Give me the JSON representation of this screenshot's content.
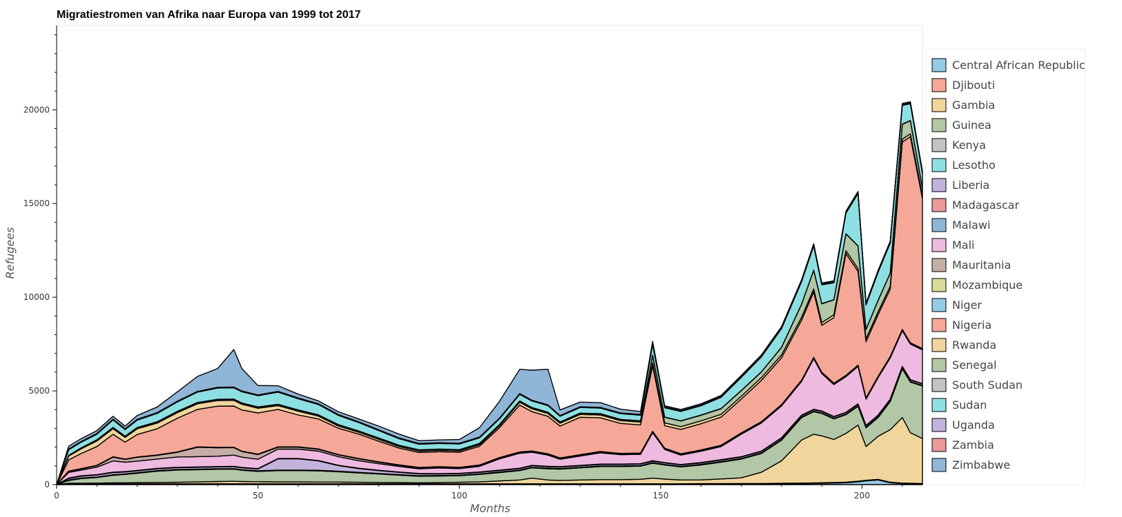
{
  "chart_data": {
    "type": "area",
    "stacked": true,
    "title": "Migratiestromen van Afrika naar Europa van 1999 tot 2017",
    "xlabel": "Months",
    "ylabel": "Refugees",
    "xlim": [
      0,
      215
    ],
    "ylim": [
      0,
      24500
    ],
    "x_ticks": [
      0,
      50,
      100,
      150,
      200
    ],
    "y_ticks": [
      0,
      5000,
      10000,
      15000,
      20000
    ],
    "x_tick_labels": [
      "0",
      "50",
      "100",
      "150",
      "200"
    ],
    "y_tick_labels": [
      "0",
      "5000",
      "10000",
      "15000",
      "20000"
    ],
    "grid": false,
    "legend_position": "right",
    "series_order": "bottom-to-top, in legend order",
    "keyframes_x": [
      0,
      3,
      6,
      10,
      14,
      17,
      20,
      25,
      30,
      35,
      40,
      44,
      46,
      50,
      55,
      60,
      65,
      70,
      75,
      80,
      85,
      90,
      95,
      100,
      105,
      110,
      115,
      118,
      122,
      125,
      130,
      135,
      140,
      145,
      148,
      151,
      155,
      160,
      165,
      170,
      175,
      180,
      185,
      188,
      190,
      193,
      196,
      199,
      201,
      204,
      207,
      210,
      212,
      215
    ],
    "series": [
      {
        "name": "Central African Republic",
        "color": "#95cbe6",
        "values": [
          0,
          20,
          20,
          20,
          25,
          25,
          25,
          25,
          25,
          25,
          25,
          25,
          25,
          25,
          25,
          25,
          25,
          25,
          25,
          25,
          25,
          25,
          25,
          25,
          25,
          25,
          25,
          25,
          25,
          25,
          25,
          25,
          25,
          25,
          25,
          25,
          25,
          30,
          30,
          30,
          30,
          40,
          50,
          60,
          70,
          80,
          100,
          150,
          200,
          250,
          100,
          50,
          40,
          30
        ]
      },
      {
        "name": "Djibouti",
        "color": "#f5a898",
        "values": [
          0,
          20,
          20,
          20,
          20,
          20,
          20,
          20,
          20,
          20,
          20,
          20,
          20,
          20,
          20,
          20,
          20,
          20,
          20,
          20,
          20,
          20,
          20,
          20,
          20,
          20,
          20,
          20,
          20,
          20,
          20,
          20,
          20,
          20,
          20,
          20,
          20,
          20,
          20,
          30,
          30,
          30,
          30,
          30,
          30,
          30,
          30,
          30,
          30,
          30,
          30,
          30,
          30,
          30
        ]
      },
      {
        "name": "Gambia",
        "color": "#f0d69c",
        "values": [
          0,
          30,
          30,
          40,
          50,
          50,
          60,
          70,
          80,
          100,
          120,
          130,
          120,
          110,
          100,
          100,
          90,
          90,
          80,
          70,
          60,
          50,
          60,
          80,
          100,
          150,
          200,
          300,
          200,
          180,
          200,
          220,
          220,
          240,
          300,
          250,
          200,
          200,
          250,
          300,
          600,
          1200,
          2300,
          2600,
          2500,
          2300,
          2600,
          3000,
          1800,
          2300,
          2800,
          3500,
          2700,
          2400
        ]
      },
      {
        "name": "Guinea",
        "color": "#b2c7a5",
        "values": [
          0,
          150,
          250,
          300,
          400,
          450,
          500,
          600,
          650,
          650,
          650,
          650,
          600,
          550,
          600,
          600,
          600,
          550,
          500,
          450,
          400,
          350,
          350,
          350,
          400,
          450,
          500,
          550,
          600,
          600,
          650,
          700,
          700,
          700,
          800,
          750,
          700,
          800,
          900,
          1000,
          1000,
          1100,
          1200,
          1200,
          1200,
          1100,
          1000,
          1000,
          1000,
          1000,
          1500,
          2600,
          2700,
          2800
        ]
      },
      {
        "name": "Kenya",
        "color": "#c3c3c3",
        "values": [
          0,
          20,
          20,
          20,
          20,
          20,
          20,
          20,
          20,
          20,
          20,
          20,
          20,
          20,
          20,
          20,
          20,
          20,
          20,
          20,
          20,
          20,
          20,
          20,
          20,
          20,
          20,
          20,
          20,
          20,
          20,
          20,
          20,
          20,
          20,
          20,
          20,
          20,
          20,
          20,
          20,
          20,
          20,
          20,
          20,
          20,
          20,
          20,
          20,
          20,
          20,
          20,
          20,
          20
        ]
      },
      {
        "name": "Lesotho",
        "color": "#8edfe2",
        "values": [
          0,
          10,
          10,
          10,
          10,
          10,
          10,
          10,
          10,
          10,
          10,
          10,
          10,
          10,
          10,
          10,
          10,
          10,
          10,
          10,
          10,
          10,
          10,
          10,
          10,
          10,
          10,
          10,
          10,
          10,
          10,
          10,
          10,
          10,
          10,
          10,
          10,
          10,
          10,
          10,
          10,
          10,
          10,
          10,
          10,
          10,
          10,
          10,
          10,
          10,
          10,
          10,
          10,
          10
        ]
      },
      {
        "name": "Liberia",
        "color": "#c3b3dc",
        "values": [
          0,
          80,
          100,
          100,
          120,
          100,
          100,
          100,
          100,
          100,
          100,
          100,
          100,
          100,
          600,
          600,
          500,
          300,
          200,
          150,
          120,
          100,
          80,
          80,
          80,
          80,
          80,
          80,
          80,
          80,
          80,
          80,
          80,
          80,
          80,
          80,
          80,
          80,
          80,
          80,
          80,
          80,
          80,
          80,
          80,
          80,
          80,
          80,
          80,
          80,
          80,
          80,
          80,
          80
        ]
      },
      {
        "name": "Madagascar",
        "color": "#ea9a9a",
        "values": [
          0,
          10,
          10,
          10,
          10,
          10,
          10,
          10,
          10,
          10,
          10,
          10,
          10,
          10,
          10,
          10,
          10,
          10,
          10,
          10,
          10,
          10,
          10,
          10,
          10,
          10,
          10,
          10,
          10,
          10,
          10,
          10,
          10,
          10,
          10,
          10,
          10,
          10,
          10,
          10,
          10,
          10,
          10,
          10,
          10,
          10,
          10,
          10,
          10,
          10,
          10,
          10,
          10,
          10
        ]
      },
      {
        "name": "Malawi",
        "color": "#8fb5d7",
        "values": [
          0,
          10,
          10,
          10,
          10,
          10,
          10,
          10,
          10,
          10,
          10,
          10,
          10,
          10,
          10,
          10,
          10,
          10,
          10,
          10,
          10,
          10,
          10,
          10,
          10,
          10,
          10,
          10,
          10,
          10,
          10,
          10,
          10,
          10,
          10,
          10,
          10,
          10,
          10,
          10,
          10,
          10,
          10,
          10,
          10,
          10,
          10,
          10,
          10,
          10,
          10,
          10,
          10,
          10
        ]
      },
      {
        "name": "Mali",
        "color": "#efbadf",
        "values": [
          0,
          300,
          300,
          400,
          600,
          500,
          500,
          500,
          550,
          550,
          550,
          600,
          550,
          500,
          500,
          500,
          500,
          450,
          400,
          350,
          300,
          250,
          300,
          250,
          300,
          600,
          800,
          700,
          600,
          400,
          500,
          600,
          500,
          500,
          1500,
          700,
          500,
          600,
          700,
          1200,
          1500,
          1700,
          1800,
          2700,
          2000,
          1700,
          1900,
          2000,
          1400,
          2000,
          2200,
          1900,
          1900,
          1800
        ]
      },
      {
        "name": "Mauritania",
        "color": "#c5aea5",
        "values": [
          0,
          50,
          60,
          80,
          200,
          150,
          200,
          200,
          250,
          500,
          450,
          400,
          300,
          250,
          100,
          100,
          100,
          100,
          100,
          80,
          60,
          50,
          50,
          50,
          50,
          50,
          50,
          50,
          50,
          50,
          50,
          50,
          50,
          50,
          50,
          50,
          50,
          50,
          50,
          50,
          50,
          50,
          50,
          50,
          50,
          50,
          50,
          50,
          50,
          50,
          50,
          50,
          50,
          50
        ]
      },
      {
        "name": "Mozambique",
        "color": "#d8da98",
        "values": [
          0,
          10,
          10,
          10,
          10,
          10,
          10,
          10,
          10,
          10,
          10,
          10,
          10,
          10,
          10,
          10,
          10,
          10,
          10,
          10,
          10,
          10,
          10,
          10,
          10,
          10,
          10,
          10,
          10,
          10,
          10,
          10,
          10,
          10,
          10,
          10,
          10,
          10,
          10,
          10,
          10,
          10,
          10,
          10,
          10,
          10,
          10,
          10,
          10,
          10,
          10,
          10,
          10,
          10
        ]
      },
      {
        "name": "Niger",
        "color": "#95cbe6",
        "values": [
          0,
          10,
          10,
          10,
          10,
          10,
          10,
          10,
          10,
          10,
          10,
          10,
          10,
          10,
          10,
          10,
          10,
          10,
          10,
          10,
          10,
          10,
          10,
          10,
          10,
          10,
          10,
          10,
          10,
          10,
          10,
          10,
          10,
          10,
          10,
          10,
          10,
          10,
          10,
          10,
          10,
          10,
          10,
          10,
          10,
          10,
          10,
          10,
          10,
          10,
          10,
          10,
          10,
          10
        ]
      },
      {
        "name": "Nigeria",
        "color": "#f5a898",
        "values": [
          0,
          600,
          800,
          1000,
          1200,
          900,
          1200,
          1400,
          1800,
          2000,
          2200,
          2200,
          2200,
          2200,
          2000,
          1700,
          1600,
          1400,
          1300,
          1100,
          900,
          800,
          800,
          800,
          1000,
          1600,
          2500,
          2100,
          2000,
          1700,
          2000,
          1800,
          1600,
          1500,
          3500,
          1200,
          1300,
          1400,
          1500,
          1800,
          2200,
          2500,
          3200,
          3500,
          2500,
          3500,
          6500,
          5000,
          3000,
          3300,
          3600,
          10000,
          11000,
          8000
        ]
      },
      {
        "name": "Rwanda",
        "color": "#f0d69c",
        "values": [
          0,
          200,
          250,
          300,
          300,
          250,
          300,
          300,
          300,
          300,
          300,
          300,
          300,
          250,
          200,
          200,
          150,
          120,
          100,
          100,
          80,
          70,
          70,
          70,
          80,
          100,
          150,
          150,
          150,
          150,
          150,
          150,
          150,
          150,
          150,
          150,
          150,
          150,
          150,
          150,
          150,
          150,
          150,
          150,
          150,
          150,
          150,
          150,
          150,
          150,
          150,
          150,
          150,
          150
        ]
      },
      {
        "name": "Senegal",
        "color": "#b2c7a5",
        "values": [
          0,
          30,
          40,
          50,
          60,
          60,
          60,
          60,
          60,
          60,
          60,
          60,
          60,
          60,
          60,
          60,
          60,
          60,
          60,
          60,
          60,
          60,
          60,
          60,
          60,
          60,
          60,
          60,
          60,
          60,
          60,
          60,
          60,
          60,
          400,
          300,
          300,
          300,
          300,
          300,
          300,
          400,
          700,
          1000,
          1000,
          800,
          900,
          1200,
          500,
          600,
          700,
          800,
          700,
          400
        ]
      },
      {
        "name": "South Sudan",
        "color": "#c3c3c3",
        "values": [
          0,
          10,
          10,
          10,
          10,
          10,
          10,
          10,
          10,
          10,
          10,
          10,
          10,
          10,
          10,
          10,
          10,
          10,
          10,
          10,
          10,
          10,
          10,
          10,
          10,
          10,
          10,
          10,
          10,
          10,
          10,
          10,
          10,
          10,
          10,
          10,
          10,
          10,
          10,
          10,
          10,
          10,
          10,
          10,
          10,
          10,
          10,
          10,
          10,
          10,
          10,
          10,
          10,
          10
        ]
      },
      {
        "name": "Sudan",
        "color": "#8edfe2",
        "values": [
          0,
          300,
          300,
          300,
          400,
          350,
          400,
          450,
          500,
          550,
          600,
          600,
          600,
          600,
          650,
          600,
          550,
          500,
          450,
          400,
          350,
          300,
          300,
          300,
          300,
          300,
          350,
          350,
          350,
          300,
          300,
          300,
          300,
          300,
          600,
          500,
          500,
          500,
          600,
          700,
          800,
          1000,
          1200,
          1300,
          1000,
          900,
          1100,
          2800,
          1300,
          1500,
          1600,
          1000,
          900,
          800
        ]
      },
      {
        "name": "Uganda",
        "color": "#c3b3dc",
        "values": [
          0,
          30,
          30,
          30,
          30,
          30,
          30,
          30,
          30,
          30,
          30,
          30,
          30,
          30,
          30,
          30,
          30,
          30,
          30,
          30,
          30,
          30,
          30,
          30,
          30,
          30,
          30,
          30,
          30,
          30,
          30,
          30,
          30,
          30,
          30,
          30,
          30,
          30,
          30,
          30,
          30,
          30,
          30,
          30,
          30,
          30,
          30,
          30,
          30,
          30,
          30,
          30,
          30,
          30
        ]
      },
      {
        "name": "Zambia",
        "color": "#ea9a9a",
        "values": [
          0,
          10,
          10,
          10,
          10,
          10,
          10,
          10,
          10,
          10,
          10,
          10,
          10,
          10,
          10,
          10,
          10,
          10,
          10,
          10,
          10,
          10,
          10,
          10,
          10,
          10,
          10,
          10,
          10,
          10,
          10,
          10,
          10,
          10,
          10,
          10,
          10,
          10,
          10,
          10,
          10,
          10,
          10,
          10,
          10,
          10,
          10,
          10,
          10,
          10,
          10,
          10,
          10,
          10
        ]
      },
      {
        "name": "Zimbabwe",
        "color": "#8fb5d7",
        "values": [
          0,
          150,
          150,
          150,
          150,
          150,
          200,
          300,
          500,
          800,
          1000,
          2000,
          1200,
          500,
          300,
          200,
          150,
          150,
          150,
          200,
          200,
          150,
          150,
          200,
          500,
          900,
          1300,
          1600,
          1900,
          300,
          250,
          250,
          200,
          150,
          100,
          60,
          60,
          60,
          60,
          60,
          60,
          60,
          60,
          60,
          60,
          60,
          60,
          60,
          60,
          60,
          60,
          60,
          60,
          60
        ]
      }
    ]
  }
}
